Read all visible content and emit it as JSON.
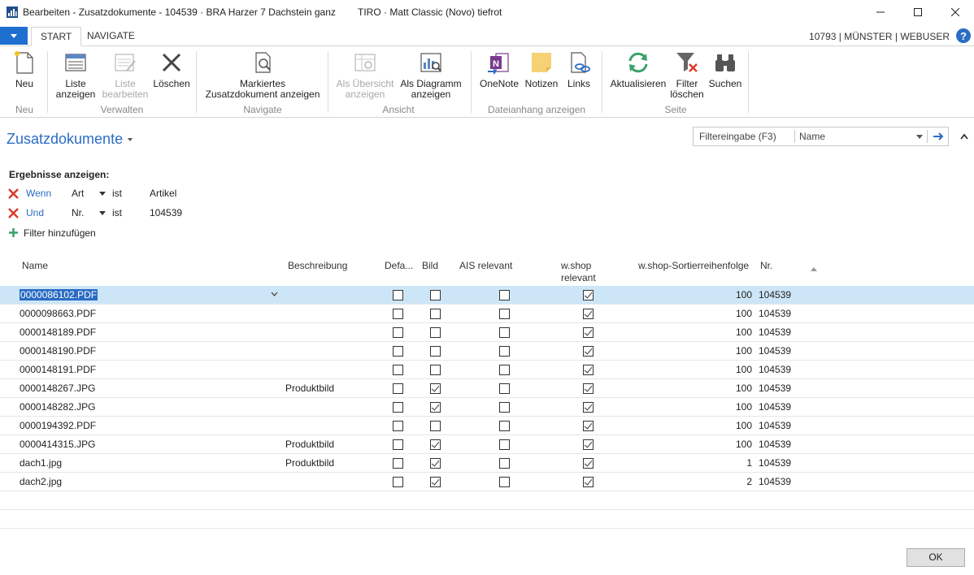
{
  "window": {
    "title": "Bearbeiten - Zusatzdokumente - 104539 · BRA Harzer 7 Dachstein ganz",
    "title_extra": "TIRO · Matt Classic (Novo) tiefrot"
  },
  "tabs": [
    {
      "label": "START",
      "active": true
    },
    {
      "label": "NAVIGATE",
      "active": false
    }
  ],
  "user_info": "10793 | MÜNSTER | WEBUSER",
  "ribbon": {
    "groups": [
      {
        "label": "Neu",
        "buttons": [
          {
            "label": "Neu",
            "icon": "new-document-icon",
            "enabled": true
          }
        ]
      },
      {
        "label": "Verwalten",
        "buttons": [
          {
            "label": "Liste\nanzeigen",
            "icon": "list-view-icon",
            "enabled": true
          },
          {
            "label": "Liste\nbearbeiten",
            "icon": "list-edit-icon",
            "enabled": false
          },
          {
            "label": "Löschen",
            "icon": "delete-x-icon",
            "enabled": true
          }
        ]
      },
      {
        "label": "Navigate",
        "buttons": [
          {
            "label": "Markiertes\nZusatzdokument anzeigen",
            "icon": "document-search-icon",
            "enabled": true
          }
        ]
      },
      {
        "label": "Ansicht",
        "buttons": [
          {
            "label": "Als Übersicht\nanzeigen",
            "icon": "overview-icon",
            "enabled": false
          },
          {
            "label": "Als Diagramm\nanzeigen",
            "icon": "chart-icon",
            "enabled": true
          }
        ]
      },
      {
        "label": "Dateianhang anzeigen",
        "buttons": [
          {
            "label": "OneNote",
            "icon": "onenote-icon",
            "enabled": true
          },
          {
            "label": "Notizen",
            "icon": "notes-icon",
            "enabled": true
          },
          {
            "label": "Links",
            "icon": "links-icon",
            "enabled": true
          }
        ]
      },
      {
        "label": "Seite",
        "buttons": [
          {
            "label": "Aktualisieren",
            "icon": "refresh-icon",
            "enabled": true
          },
          {
            "label": "Filter\nlöschen",
            "icon": "clear-filter-icon",
            "enabled": true
          },
          {
            "label": "Suchen",
            "icon": "binoculars-icon",
            "enabled": true
          }
        ]
      }
    ]
  },
  "page": {
    "title": "Zusatzdokumente",
    "filter_placeholder": "Filtereingabe (F3)",
    "filter_field": "Name"
  },
  "filters": {
    "heading": "Ergebnisse anzeigen:",
    "rows": [
      {
        "keyword": "Wenn",
        "field": "Art",
        "op": "ist",
        "value": "Artikel"
      },
      {
        "keyword": "Und",
        "field": "Nr.",
        "op": "ist",
        "value": "104539"
      }
    ],
    "add_label": "Filter hinzufügen"
  },
  "table": {
    "headers": {
      "name": "Name",
      "desc": "Beschreibung",
      "default": "Defa...",
      "bild": "Bild",
      "ais": "AIS relevant",
      "wshop_line1": "w.shop",
      "wshop_line2": "relevant",
      "sort": "w.shop-Sortierreihenfolge",
      "nr": "Nr."
    },
    "rows": [
      {
        "name": "0000086102.PDF",
        "desc": "",
        "default": false,
        "bild": false,
        "ais": false,
        "wshop": true,
        "sort": "100",
        "nr": "104539"
      },
      {
        "name": "0000098663.PDF",
        "desc": "",
        "default": false,
        "bild": false,
        "ais": false,
        "wshop": true,
        "sort": "100",
        "nr": "104539"
      },
      {
        "name": "0000148189.PDF",
        "desc": "",
        "default": false,
        "bild": false,
        "ais": false,
        "wshop": true,
        "sort": "100",
        "nr": "104539"
      },
      {
        "name": "0000148190.PDF",
        "desc": "",
        "default": false,
        "bild": false,
        "ais": false,
        "wshop": true,
        "sort": "100",
        "nr": "104539"
      },
      {
        "name": "0000148191.PDF",
        "desc": "",
        "default": false,
        "bild": false,
        "ais": false,
        "wshop": true,
        "sort": "100",
        "nr": "104539"
      },
      {
        "name": "0000148267.JPG",
        "desc": "Produktbild",
        "default": false,
        "bild": true,
        "ais": false,
        "wshop": true,
        "sort": "100",
        "nr": "104539"
      },
      {
        "name": "0000148282.JPG",
        "desc": "",
        "default": false,
        "bild": true,
        "ais": false,
        "wshop": true,
        "sort": "100",
        "nr": "104539"
      },
      {
        "name": "0000194392.PDF",
        "desc": "",
        "default": false,
        "bild": false,
        "ais": false,
        "wshop": true,
        "sort": "100",
        "nr": "104539"
      },
      {
        "name": "0000414315.JPG",
        "desc": "Produktbild",
        "default": false,
        "bild": true,
        "ais": false,
        "wshop": true,
        "sort": "100",
        "nr": "104539"
      },
      {
        "name": "dach1.jpg",
        "desc": "Produktbild",
        "default": false,
        "bild": true,
        "ais": false,
        "wshop": true,
        "sort": "1",
        "nr": "104539"
      },
      {
        "name": "dach2.jpg",
        "desc": "",
        "default": false,
        "bild": true,
        "ais": false,
        "wshop": true,
        "sort": "2",
        "nr": "104539"
      }
    ]
  },
  "ok_label": "OK",
  "colors": {
    "accent": "#2b6cc4",
    "selected_row": "#cde6f7",
    "file_button": "#1f6fd1"
  }
}
